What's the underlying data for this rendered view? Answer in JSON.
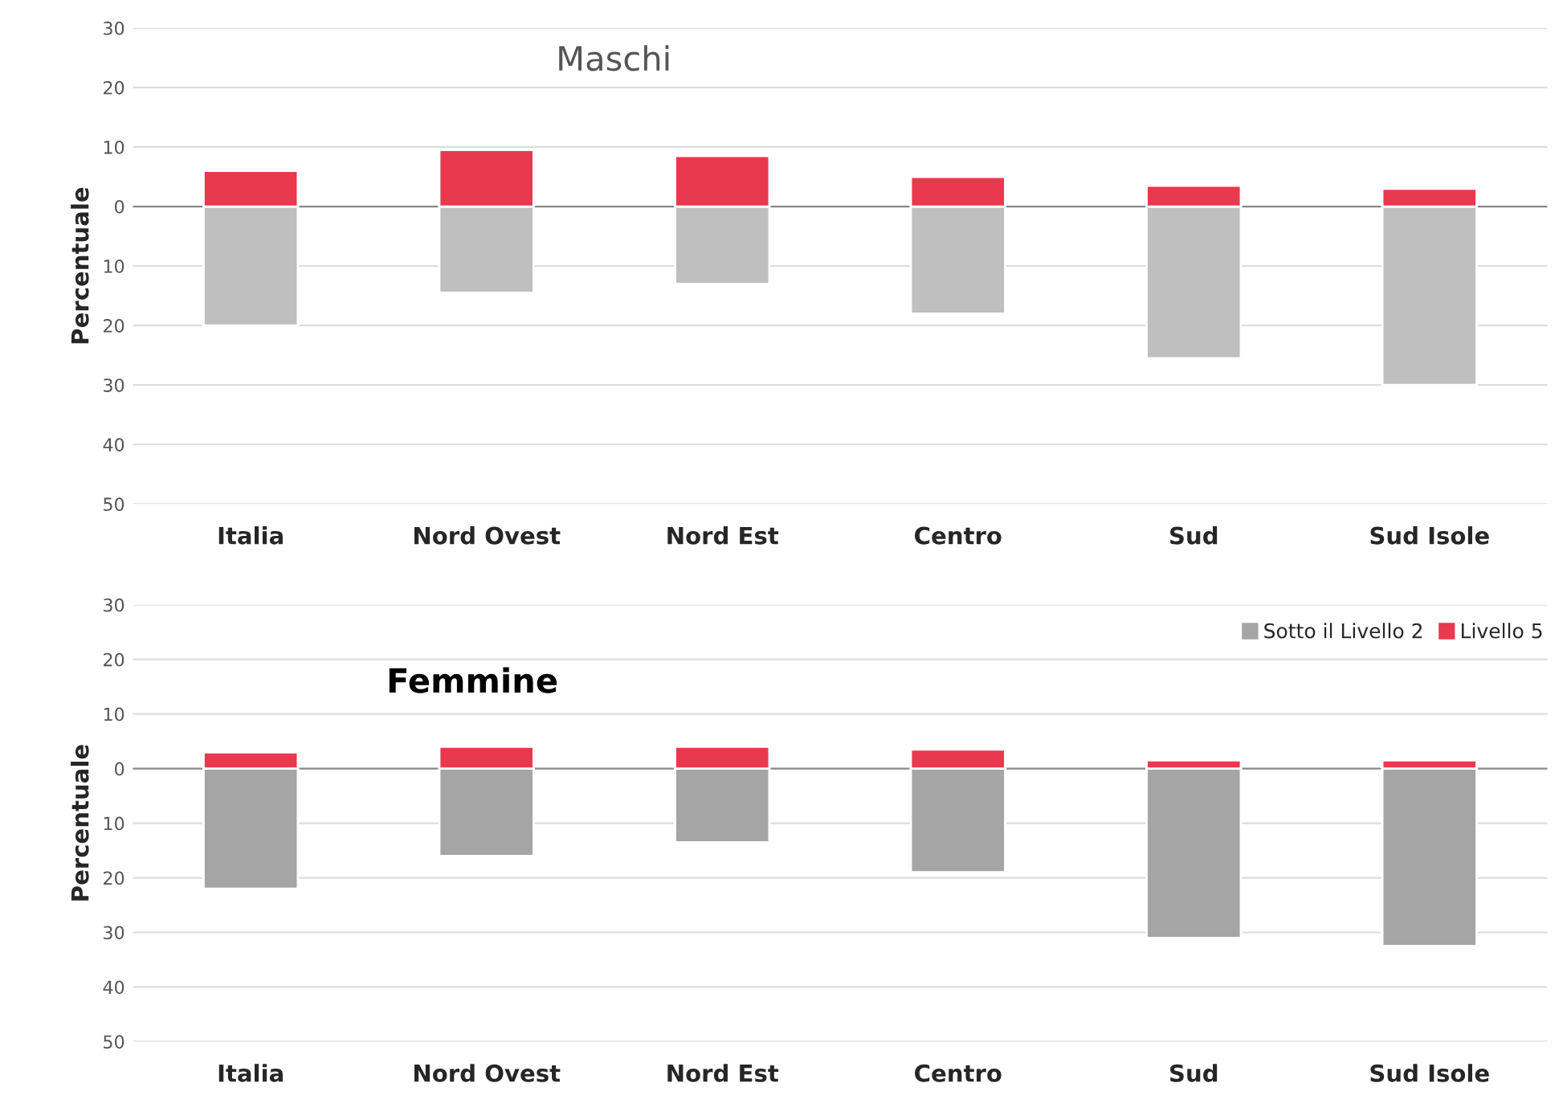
{
  "chart_data": [
    {
      "type": "bar",
      "title": "Maschi",
      "ylabel": "Percentuale",
      "stacked": true,
      "categories": [
        "Italia",
        "Nord Ovest",
        "Nord Est",
        "Centro",
        "Sud",
        "Sud Isole"
      ],
      "series": [
        {
          "color": "#bfbfbf",
          "values": [
            -20,
            -14.5,
            -13,
            -18,
            -25.5,
            -30
          ]
        },
        {
          "color": "#e8394f",
          "values": [
            6,
            9.5,
            8.5,
            5,
            3.5,
            3
          ]
        }
      ],
      "ylim": [
        -50,
        30
      ],
      "yticks": [
        {
          "value": -50,
          "label": "50"
        },
        {
          "value": -40,
          "label": "40"
        },
        {
          "value": -30,
          "label": "30"
        },
        {
          "value": -20,
          "label": "20"
        },
        {
          "value": -10,
          "label": "10"
        },
        0,
        10,
        20,
        30
      ],
      "grid": "y",
      "legend": false
    },
    {
      "type": "bar",
      "title": "Femmine",
      "ylabel": "Percentuale",
      "stacked": true,
      "categories": [
        "Italia",
        "Nord Ovest",
        "Nord Est",
        "Centro",
        "Sud",
        "Sud Isole"
      ],
      "series": [
        {
          "name": "Sotto il Livello 2",
          "color": "#a5a5a5",
          "values": [
            -22,
            -16,
            -13.5,
            -19,
            -31,
            -32.5
          ]
        },
        {
          "name": "Livello 5",
          "color": "#e8394f",
          "values": [
            3,
            4,
            4,
            3.5,
            1.5,
            1.5
          ]
        }
      ],
      "ylim": [
        -50,
        30
      ],
      "yticks": [
        {
          "value": -50,
          "label": "50"
        },
        {
          "value": -40,
          "label": "40"
        },
        {
          "value": -30,
          "label": "30"
        },
        {
          "value": -20,
          "label": "20"
        },
        {
          "value": -10,
          "label": "10"
        },
        0,
        10,
        20,
        30
      ],
      "grid": "y",
      "legend": "top right"
    }
  ]
}
